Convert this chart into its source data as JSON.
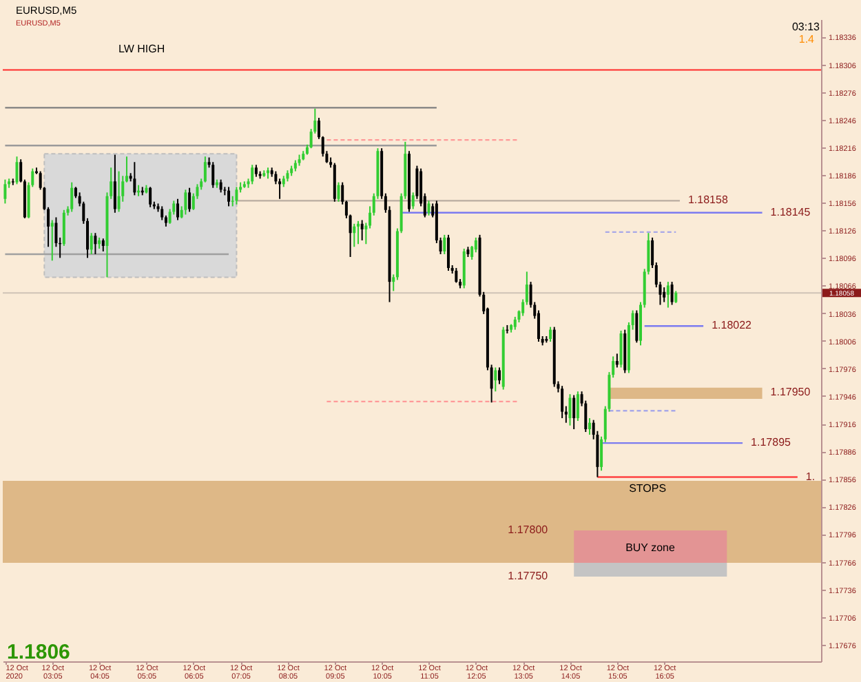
{
  "chart_data": {
    "type": "candlestick",
    "title": "EURUSD,M5",
    "subtitle": "EURUSD,M5",
    "x": [
      "2020-10-12T02:05",
      "2020-10-12T02:10",
      "2020-10-12T02:15",
      "2020-10-12T02:20",
      "2020-10-12T02:25",
      "2020-10-12T02:30",
      "2020-10-12T02:35",
      "2020-10-12T02:40",
      "2020-10-12T02:45",
      "2020-10-12T02:50",
      "2020-10-12T02:55",
      "2020-10-12T03:00",
      "2020-10-12T03:05",
      "2020-10-12T03:10",
      "2020-10-12T03:15",
      "2020-10-12T03:20",
      "2020-10-12T03:25",
      "2020-10-12T03:30",
      "2020-10-12T03:35",
      "2020-10-12T03:40",
      "2020-10-12T03:45",
      "2020-10-12T03:50",
      "2020-10-12T03:55",
      "2020-10-12T04:00",
      "2020-10-12T04:05",
      "2020-10-12T04:10",
      "2020-10-12T04:15",
      "2020-10-12T04:20",
      "2020-10-12T04:25",
      "2020-10-12T04:30",
      "2020-10-12T04:35",
      "2020-10-12T04:40",
      "2020-10-12T04:45",
      "2020-10-12T04:50",
      "2020-10-12T04:55",
      "2020-10-12T05:00",
      "2020-10-12T05:05",
      "2020-10-12T05:10",
      "2020-10-12T05:15",
      "2020-10-12T05:20",
      "2020-10-12T05:25",
      "2020-10-12T05:30",
      "2020-10-12T05:35",
      "2020-10-12T05:40",
      "2020-10-12T05:45",
      "2020-10-12T05:50",
      "2020-10-12T05:55",
      "2020-10-12T06:00",
      "2020-10-12T06:05",
      "2020-10-12T06:10",
      "2020-10-12T06:15",
      "2020-10-12T06:20",
      "2020-10-12T06:25",
      "2020-10-12T06:30",
      "2020-10-12T06:35",
      "2020-10-12T06:40",
      "2020-10-12T06:45",
      "2020-10-12T06:50",
      "2020-10-12T06:55",
      "2020-10-12T07:00",
      "2020-10-12T07:05",
      "2020-10-12T07:10",
      "2020-10-12T07:15",
      "2020-10-12T07:20",
      "2020-10-12T07:25",
      "2020-10-12T07:30",
      "2020-10-12T07:35",
      "2020-10-12T07:40",
      "2020-10-12T07:45",
      "2020-10-12T07:50",
      "2020-10-12T07:55",
      "2020-10-12T08:00",
      "2020-10-12T08:05",
      "2020-10-12T08:10",
      "2020-10-12T08:15",
      "2020-10-12T08:20",
      "2020-10-12T08:25",
      "2020-10-12T08:30",
      "2020-10-12T08:35",
      "2020-10-12T08:40",
      "2020-10-12T08:45",
      "2020-10-12T08:50",
      "2020-10-12T08:55",
      "2020-10-12T09:00",
      "2020-10-12T09:05",
      "2020-10-12T09:10",
      "2020-10-12T09:15",
      "2020-10-12T09:20",
      "2020-10-12T09:25",
      "2020-10-12T09:30",
      "2020-10-12T09:35",
      "2020-10-12T09:40",
      "2020-10-12T09:45",
      "2020-10-12T09:50",
      "2020-10-12T09:55",
      "2020-10-12T10:00",
      "2020-10-12T10:05",
      "2020-10-12T10:10",
      "2020-10-12T10:15",
      "2020-10-12T10:20",
      "2020-10-12T10:25",
      "2020-10-12T10:30",
      "2020-10-12T10:35",
      "2020-10-12T10:40",
      "2020-10-12T10:45",
      "2020-10-12T10:50",
      "2020-10-12T10:55",
      "2020-10-12T11:00",
      "2020-10-12T11:05",
      "2020-10-12T11:10",
      "2020-10-12T11:15",
      "2020-10-12T11:20",
      "2020-10-12T11:25",
      "2020-10-12T11:30",
      "2020-10-12T11:35",
      "2020-10-12T11:40",
      "2020-10-12T11:45",
      "2020-10-12T11:50",
      "2020-10-12T11:55",
      "2020-10-12T12:00",
      "2020-10-12T12:05",
      "2020-10-12T12:10",
      "2020-10-12T12:15",
      "2020-10-12T12:20",
      "2020-10-12T12:25",
      "2020-10-12T12:30",
      "2020-10-12T12:35",
      "2020-10-12T12:40",
      "2020-10-12T12:45",
      "2020-10-12T12:50",
      "2020-10-12T12:55",
      "2020-10-12T13:00",
      "2020-10-12T13:05",
      "2020-10-12T13:10",
      "2020-10-12T13:15",
      "2020-10-12T13:20",
      "2020-10-12T13:25",
      "2020-10-12T13:30",
      "2020-10-12T13:35",
      "2020-10-12T13:40",
      "2020-10-12T13:45",
      "2020-10-12T13:50",
      "2020-10-12T13:55",
      "2020-10-12T14:00",
      "2020-10-12T14:05",
      "2020-10-12T14:10",
      "2020-10-12T14:15",
      "2020-10-12T14:20",
      "2020-10-12T14:25",
      "2020-10-12T14:30",
      "2020-10-12T14:35",
      "2020-10-12T14:40",
      "2020-10-12T14:45",
      "2020-10-12T14:50",
      "2020-10-12T14:55",
      "2020-10-12T15:00",
      "2020-10-12T15:05",
      "2020-10-12T15:10",
      "2020-10-12T15:15",
      "2020-10-12T15:20",
      "2020-10-12T15:25",
      "2020-10-12T15:30",
      "2020-10-12T15:35",
      "2020-10-12T15:40",
      "2020-10-12T15:45",
      "2020-10-12T15:50",
      "2020-10-12T15:55",
      "2020-10-12T16:00",
      "2020-10-12T16:05",
      "2020-10-12T16:10",
      "2020-10-12T16:15",
      "2020-10-12T16:20"
    ],
    "ohlc": [
      [
        1.1816,
        1.18181,
        1.18155,
        1.18176
      ],
      [
        1.18176,
        1.18182,
        1.18172,
        1.18179
      ],
      [
        1.18179,
        1.18182,
        1.18175,
        1.18178
      ],
      [
        1.18178,
        1.18206,
        1.18176,
        1.182
      ],
      [
        1.182,
        1.18203,
        1.18178,
        1.18179
      ],
      [
        1.18179,
        1.18181,
        1.18139,
        1.1814
      ],
      [
        1.1814,
        1.18178,
        1.18139,
        1.18175
      ],
      [
        1.18175,
        1.18193,
        1.18173,
        1.1819
      ],
      [
        1.1819,
        1.18194,
        1.18187,
        1.18188
      ],
      [
        1.18188,
        1.1819,
        1.1817,
        1.18172
      ],
      [
        1.18172,
        1.18173,
        1.18148,
        1.18149
      ],
      [
        1.18149,
        1.18151,
        1.18108,
        1.1813
      ],
      [
        1.1813,
        1.18137,
        1.18093,
        1.18134
      ],
      [
        1.18134,
        1.1814,
        1.18108,
        1.18112
      ],
      [
        1.18112,
        1.18118,
        1.18096,
        1.18111
      ],
      [
        1.18111,
        1.18148,
        1.18109,
        1.18145
      ],
      [
        1.18145,
        1.18152,
        1.18142,
        1.18149
      ],
      [
        1.18149,
        1.18178,
        1.18146,
        1.18172
      ],
      [
        1.18172,
        1.18173,
        1.18161,
        1.18163
      ],
      [
        1.18163,
        1.18167,
        1.18152,
        1.18155
      ],
      [
        1.18155,
        1.18157,
        1.18133,
        1.18136
      ],
      [
        1.18136,
        1.18139,
        1.18096,
        1.18105
      ],
      [
        1.18105,
        1.18123,
        1.181,
        1.1812
      ],
      [
        1.1812,
        1.18123,
        1.181,
        1.18111
      ],
      [
        1.18111,
        1.18118,
        1.18106,
        1.18115
      ],
      [
        1.18115,
        1.18117,
        1.18103,
        1.18109
      ],
      [
        1.18109,
        1.18167,
        1.18075,
        1.18163
      ],
      [
        1.18163,
        1.18194,
        1.1816,
        1.18179
      ],
      [
        1.18179,
        1.18208,
        1.18145,
        1.18149
      ],
      [
        1.18149,
        1.1819,
        1.18146,
        1.18163
      ],
      [
        1.18163,
        1.18185,
        1.18157,
        1.18179
      ],
      [
        1.18179,
        1.18206,
        1.18178,
        1.18185
      ],
      [
        1.18185,
        1.18188,
        1.18179,
        1.18182
      ],
      [
        1.18182,
        1.182,
        1.18164,
        1.18167
      ],
      [
        1.18167,
        1.18175,
        1.18163,
        1.18169
      ],
      [
        1.18169,
        1.18173,
        1.18164,
        1.18167
      ],
      [
        1.18167,
        1.18175,
        1.18166,
        1.18172
      ],
      [
        1.18172,
        1.18173,
        1.18151,
        1.18154
      ],
      [
        1.18154,
        1.18157,
        1.18149,
        1.18152
      ],
      [
        1.18152,
        1.18155,
        1.18146,
        1.18149
      ],
      [
        1.18149,
        1.18152,
        1.18137,
        1.1814
      ],
      [
        1.1814,
        1.18142,
        1.1813,
        1.18134
      ],
      [
        1.18134,
        1.18149,
        1.18133,
        1.18146
      ],
      [
        1.18146,
        1.18158,
        1.18143,
        1.18155
      ],
      [
        1.18155,
        1.1816,
        1.18137,
        1.1814
      ],
      [
        1.1814,
        1.18152,
        1.18139,
        1.18148
      ],
      [
        1.18148,
        1.1817,
        1.18143,
        1.18167
      ],
      [
        1.18167,
        1.18172,
        1.18146,
        1.18149
      ],
      [
        1.18149,
        1.18166,
        1.18148,
        1.18163
      ],
      [
        1.18163,
        1.18176,
        1.1816,
        1.18173
      ],
      [
        1.18173,
        1.18182,
        1.1817,
        1.18179
      ],
      [
        1.18179,
        1.18206,
        1.18178,
        1.182
      ],
      [
        1.182,
        1.18205,
        1.18194,
        1.18197
      ],
      [
        1.18197,
        1.182,
        1.18172,
        1.18175
      ],
      [
        1.18175,
        1.18181,
        1.18172,
        1.18178
      ],
      [
        1.18178,
        1.18181,
        1.18167,
        1.1817
      ],
      [
        1.1817,
        1.18173,
        1.18164,
        1.18169
      ],
      [
        1.18169,
        1.18173,
        1.18152,
        1.18157
      ],
      [
        1.18157,
        1.18163,
        1.18152,
        1.18158
      ],
      [
        1.18158,
        1.18173,
        1.18154,
        1.1817
      ],
      [
        1.1817,
        1.18178,
        1.18167,
        1.18173
      ],
      [
        1.18173,
        1.18179,
        1.18172,
        1.18176
      ],
      [
        1.18176,
        1.18182,
        1.18172,
        1.18179
      ],
      [
        1.18179,
        1.18197,
        1.18176,
        1.18194
      ],
      [
        1.18194,
        1.18197,
        1.18184,
        1.18187
      ],
      [
        1.18187,
        1.1819,
        1.18182,
        1.18185
      ],
      [
        1.18185,
        1.18191,
        1.18184,
        1.18188
      ],
      [
        1.18188,
        1.18194,
        1.18182,
        1.18191
      ],
      [
        1.18191,
        1.18194,
        1.18184,
        1.18187
      ],
      [
        1.18187,
        1.1819,
        1.18176,
        1.18179
      ],
      [
        1.18179,
        1.18182,
        1.1816,
        1.18176
      ],
      [
        1.18176,
        1.18185,
        1.18173,
        1.18182
      ],
      [
        1.18182,
        1.18191,
        1.18179,
        1.18188
      ],
      [
        1.18188,
        1.18196,
        1.18185,
        1.18193
      ],
      [
        1.18193,
        1.18202,
        1.1819,
        1.18199
      ],
      [
        1.18199,
        1.18208,
        1.18196,
        1.18203
      ],
      [
        1.18203,
        1.18212,
        1.18202,
        1.18209
      ],
      [
        1.18209,
        1.18219,
        1.18208,
        1.18216
      ],
      [
        1.18216,
        1.18236,
        1.18215,
        1.18233
      ],
      [
        1.18233,
        1.18258,
        1.18231,
        1.18245
      ],
      [
        1.18245,
        1.18248,
        1.18225,
        1.18227
      ],
      [
        1.18227,
        1.18228,
        1.18206,
        1.18209
      ],
      [
        1.18209,
        1.18212,
        1.18199,
        1.182
      ],
      [
        1.182,
        1.18205,
        1.18194,
        1.18197
      ],
      [
        1.18197,
        1.18199,
        1.18157,
        1.1816
      ],
      [
        1.1816,
        1.18178,
        1.18157,
        1.18175
      ],
      [
        1.18175,
        1.18178,
        1.18154,
        1.18157
      ],
      [
        1.18157,
        1.18158,
        1.18139,
        1.18142
      ],
      [
        1.18142,
        1.18143,
        1.18097,
        1.18123
      ],
      [
        1.18123,
        1.18133,
        1.18108,
        1.1813
      ],
      [
        1.1813,
        1.18136,
        1.18111,
        1.18133
      ],
      [
        1.18133,
        1.18137,
        1.18115,
        1.18127
      ],
      [
        1.18127,
        1.18134,
        1.18111,
        1.18131
      ],
      [
        1.18131,
        1.18152,
        1.18128,
        1.18145
      ],
      [
        1.18145,
        1.18166,
        1.18142,
        1.18163
      ],
      [
        1.18163,
        1.18215,
        1.1816,
        1.18212
      ],
      [
        1.18212,
        1.18215,
        1.1816,
        1.18163
      ],
      [
        1.18163,
        1.18166,
        1.18145,
        1.18148
      ],
      [
        1.18148,
        1.18152,
        1.18048,
        1.1807
      ],
      [
        1.1807,
        1.18078,
        1.1806,
        1.18075
      ],
      [
        1.18075,
        1.18128,
        1.18072,
        1.18125
      ],
      [
        1.18125,
        1.18166,
        1.18123,
        1.18163
      ],
      [
        1.18163,
        1.18222,
        1.1816,
        1.18209
      ],
      [
        1.18209,
        1.18212,
        1.18146,
        1.18149
      ],
      [
        1.18152,
        1.18167,
        1.18149,
        1.18164
      ],
      [
        1.18193,
        1.18196,
        1.1816,
        1.18163
      ],
      [
        1.1819,
        1.18193,
        1.18152,
        1.18155
      ],
      [
        1.18163,
        1.18166,
        1.1814,
        1.18142
      ],
      [
        1.18145,
        1.18158,
        1.18142,
        1.18155
      ],
      [
        1.18152,
        1.18155,
        1.1814,
        1.18142
      ],
      [
        1.18155,
        1.18158,
        1.18112,
        1.18115
      ],
      [
        1.18115,
        1.18118,
        1.181,
        1.18103
      ],
      [
        1.18103,
        1.18121,
        1.181,
        1.18118
      ],
      [
        1.18118,
        1.18121,
        1.18082,
        1.18085
      ],
      [
        1.18085,
        1.18088,
        1.18079,
        1.18082
      ],
      [
        1.18082,
        1.18085,
        1.18069,
        1.1807
      ],
      [
        1.1807,
        1.18073,
        1.18063,
        1.18066
      ],
      [
        1.18066,
        1.18106,
        1.18063,
        1.18103
      ],
      [
        1.18105,
        1.18108,
        1.18097,
        1.181
      ],
      [
        1.18097,
        1.18109,
        1.18094,
        1.18108
      ],
      [
        1.18105,
        1.18118,
        1.18102,
        1.18115
      ],
      [
        1.18118,
        1.18121,
        1.18054,
        1.18056
      ],
      [
        1.18056,
        1.18059,
        1.18035,
        1.18038
      ],
      [
        1.18041,
        1.18042,
        1.17974,
        1.17977
      ],
      [
        1.17977,
        1.1798,
        1.17939,
        1.17954
      ],
      [
        1.17963,
        1.17977,
        1.17951,
        1.17974
      ],
      [
        1.17974,
        1.17977,
        1.17959,
        1.17963
      ],
      [
        1.17956,
        1.18021,
        1.17953,
        1.18018
      ],
      [
        1.18018,
        1.18023,
        1.18014,
        1.18017
      ],
      [
        1.18018,
        1.18024,
        1.18015,
        1.18023
      ],
      [
        1.18021,
        1.18032,
        1.18018,
        1.18029
      ],
      [
        1.18029,
        1.18039,
        1.18026,
        1.18038
      ],
      [
        1.18036,
        1.18051,
        1.18033,
        1.18048
      ],
      [
        1.18048,
        1.18081,
        1.18045,
        1.18067
      ],
      [
        1.18067,
        1.1807,
        1.18042,
        1.18045
      ],
      [
        1.18045,
        1.18048,
        1.1803,
        1.18033
      ],
      [
        1.18036,
        1.18039,
        1.18005,
        1.18008
      ],
      [
        1.18008,
        1.18011,
        1.18001,
        1.18004
      ],
      [
        1.18008,
        1.18011,
        1.18004,
        1.18006
      ],
      [
        1.18008,
        1.18021,
        1.18005,
        1.18018
      ],
      [
        1.18018,
        1.18021,
        1.17956,
        1.17959
      ],
      [
        1.17959,
        1.17962,
        1.1795,
        1.17954
      ],
      [
        1.17954,
        1.17957,
        1.17922,
        1.17929
      ],
      [
        1.17929,
        1.17935,
        1.17917,
        1.17926
      ],
      [
        1.17922,
        1.17948,
        1.17914,
        1.17944
      ],
      [
        1.17944,
        1.17947,
        1.1791,
        1.17922
      ],
      [
        1.17922,
        1.17951,
        1.17919,
        1.17948
      ],
      [
        1.17948,
        1.17951,
        1.17935,
        1.17938
      ],
      [
        1.17938,
        1.17941,
        1.17907,
        1.1791
      ],
      [
        1.1791,
        1.17922,
        1.17904,
        1.17917
      ],
      [
        1.17917,
        1.1792,
        1.17899,
        1.17904
      ],
      [
        1.17904,
        1.17908,
        1.17858,
        1.17869
      ],
      [
        1.17869,
        1.17902,
        1.17865,
        1.17899
      ],
      [
        1.17899,
        1.17935,
        1.17896,
        1.17932
      ],
      [
        1.17932,
        1.17972,
        1.17929,
        1.17969
      ],
      [
        1.17969,
        1.17989,
        1.17966,
        1.17984
      ],
      [
        1.17984,
        1.17992,
        1.17977,
        1.1798
      ],
      [
        1.1798,
        1.18017,
        1.17977,
        1.18014
      ],
      [
        1.18014,
        1.18018,
        1.17971,
        1.17974
      ],
      [
        1.17974,
        1.18026,
        1.17971,
        1.18023
      ],
      [
        1.18023,
        1.18039,
        1.18018,
        1.18036
      ],
      [
        1.18036,
        1.18039,
        1.18004,
        1.18006
      ],
      [
        1.18006,
        1.18048,
        1.18001,
        1.18045
      ],
      [
        1.18045,
        1.18084,
        1.18042,
        1.18081
      ],
      [
        1.18081,
        1.18123,
        1.18078,
        1.18115
      ],
      [
        1.18115,
        1.18118,
        1.18085,
        1.18088
      ],
      [
        1.18088,
        1.18091,
        1.18064,
        1.18067
      ],
      [
        1.18067,
        1.1807,
        1.18045,
        1.18056
      ],
      [
        1.18059,
        1.18064,
        1.18048,
        1.18053
      ],
      [
        1.18056,
        1.1807,
        1.18042,
        1.18066
      ],
      [
        1.18067,
        1.1807,
        1.18045,
        1.18048
      ],
      [
        1.18048,
        1.1806,
        1.18047,
        1.18058
      ]
    ],
    "colors": [
      "#32cd32",
      "#32cd32",
      "#000000",
      "#32cd32",
      "#000000",
      "#000000",
      "#32cd32",
      "#32cd32",
      "#000000",
      "#000000",
      "#000000",
      "#000000",
      "#32cd32",
      "#000000",
      "#000000",
      "#32cd32",
      "#32cd32",
      "#32cd32",
      "#000000",
      "#000000",
      "#000000",
      "#000000",
      "#32cd32",
      "#000000",
      "#32cd32",
      "#000000",
      "#32cd32",
      "#32cd32",
      "#000000",
      "#32cd32",
      "#32cd32",
      "#32cd32",
      "#000000",
      "#000000",
      "#32cd32",
      "#000000",
      "#32cd32",
      "#000000",
      "#000000",
      "#000000",
      "#000000",
      "#000000",
      "#32cd32",
      "#32cd32",
      "#000000",
      "#32cd32",
      "#32cd32",
      "#000000",
      "#32cd32",
      "#32cd32",
      "#32cd32",
      "#32cd32",
      "#000000",
      "#000000",
      "#32cd32",
      "#000000",
      "#000000",
      "#000000",
      "#32cd32",
      "#32cd32",
      "#32cd32",
      "#32cd32",
      "#32cd32",
      "#32cd32",
      "#000000",
      "#000000",
      "#32cd32",
      "#32cd32",
      "#000000",
      "#000000",
      "#000000",
      "#32cd32",
      "#32cd32",
      "#32cd32",
      "#32cd32",
      "#32cd32",
      "#32cd32",
      "#32cd32",
      "#32cd32",
      "#32cd32",
      "#000000",
      "#000000",
      "#000000",
      "#000000",
      "#000000",
      "#32cd32",
      "#000000",
      "#000000",
      "#000000",
      "#32cd32",
      "#32cd32",
      "#000000",
      "#32cd32",
      "#32cd32",
      "#32cd32",
      "#32cd32",
      "#000000",
      "#000000",
      "#000000",
      "#32cd32",
      "#32cd32",
      "#32cd32",
      "#32cd32",
      "#000000",
      "#32cd32",
      "#000000",
      "#000000",
      "#000000",
      "#32cd32",
      "#000000",
      "#000000",
      "#000000",
      "#32cd32",
      "#000000",
      "#000000",
      "#000000",
      "#000000",
      "#32cd32",
      "#000000",
      "#32cd32",
      "#32cd32",
      "#000000",
      "#000000",
      "#000000",
      "#000000",
      "#32cd32",
      "#000000",
      "#32cd32",
      "#000000",
      "#32cd32",
      "#32cd32",
      "#32cd32",
      "#32cd32",
      "#32cd32",
      "#000000",
      "#000000",
      "#000000",
      "#000000",
      "#000000",
      "#32cd32",
      "#000000",
      "#000000",
      "#000000",
      "#000000",
      "#32cd32",
      "#000000",
      "#32cd32",
      "#000000",
      "#000000",
      "#32cd32",
      "#000000",
      "#000000",
      "#32cd32",
      "#32cd32",
      "#32cd32",
      "#32cd32",
      "#000000",
      "#32cd32",
      "#000000",
      "#32cd32",
      "#32cd32",
      "#000000",
      "#32cd32",
      "#32cd32",
      "#32cd32",
      "#000000",
      "#000000",
      "#000000",
      "#000000",
      "#32cd32",
      "#000000",
      "#32cd32"
    ],
    "xlim": [
      "2020-10-12T02:02",
      "2020-10-12T19:25"
    ],
    "xticks": [
      {
        "value": "2020-10-12T02:05",
        "label": "12 Oct 2020"
      },
      {
        "value": "2020-10-12T03:05",
        "label": "12 Oct 03:05"
      },
      {
        "value": "2020-10-12T04:05",
        "label": "12 Oct 04:05"
      },
      {
        "value": "2020-10-12T05:05",
        "label": "12 Oct 05:05"
      },
      {
        "value": "2020-10-12T06:05",
        "label": "12 Oct 06:05"
      },
      {
        "value": "2020-10-12T07:05",
        "label": "12 Oct 07:05"
      },
      {
        "value": "2020-10-12T08:05",
        "label": "12 Oct 08:05"
      },
      {
        "value": "2020-10-12T09:05",
        "label": "12 Oct 09:05"
      },
      {
        "value": "2020-10-12T10:05",
        "label": "12 Oct 10:05"
      },
      {
        "value": "2020-10-12T11:05",
        "label": "12 Oct 11:05"
      },
      {
        "value": "2020-10-12T12:05",
        "label": "12 Oct 12:05"
      },
      {
        "value": "2020-10-12T13:05",
        "label": "12 Oct 13:05"
      },
      {
        "value": "2020-10-12T14:05",
        "label": "12 Oct 14:05"
      },
      {
        "value": "2020-10-12T15:05",
        "label": "12 Oct 15:05"
      },
      {
        "value": "2020-10-12T16:05",
        "label": "12 Oct 16:05"
      }
    ],
    "ylim": [
      1.17658,
      1.18355
    ],
    "yticks": [
      1.17676,
      1.17706,
      1.17736,
      1.17766,
      1.17796,
      1.17826,
      1.17856,
      1.17886,
      1.17916,
      1.17946,
      1.17976,
      1.18006,
      1.18036,
      1.18066,
      1.18096,
      1.18126,
      1.18156,
      1.18186,
      1.18216,
      1.18246,
      1.18276,
      1.18306,
      1.18336
    ],
    "bands": [
      {
        "axis": "y",
        "from": 1.17765,
        "to": 1.17854,
        "label": "STOPS",
        "color": "#deb887"
      }
    ],
    "ref_lines": [
      {
        "axis": "y",
        "value": 1.183,
        "label": "LW HIGH",
        "color": "#ff2a2a"
      },
      {
        "axis": "y",
        "value": 1.18058,
        "label": "1.18058",
        "color": "#cfc3b6"
      }
    ],
    "series": [
      {
        "type": "line",
        "color": "#d9d9d9",
        "line_style": "dashed",
        "x": [
          "2020-10-12T02:55",
          "2020-10-12T07:00"
        ],
        "values": [
          null,
          null
        ],
        "lower": [
          1.18075,
          1.18075
        ],
        "upper": [
          1.18209,
          1.18209
        ]
      },
      {
        "type": "line",
        "color": "#deb887",
        "x": [
          "2020-10-12T14:55",
          "2020-10-12T18:10"
        ],
        "values": [
          null,
          null
        ],
        "lower": [
          1.17943,
          1.17943
        ],
        "upper": [
          1.17955,
          1.17955
        ]
      },
      {
        "type": "line",
        "color": "#e39494",
        "x": [
          "2020-10-12T14:10",
          "2020-10-12T17:25"
        ],
        "values": [
          null,
          null
        ],
        "lower": [
          1.17765,
          1.17765
        ],
        "upper": [
          1.178,
          1.178
        ]
      },
      {
        "type": "line",
        "color": "#c4c4c4",
        "x": [
          "2020-10-12T14:10",
          "2020-10-12T17:25"
        ],
        "values": [
          null,
          null
        ],
        "lower": [
          1.1775,
          1.1775
        ],
        "upper": [
          1.17765,
          1.17765
        ]
      },
      {
        "type": "line",
        "color": "#7f7f7f",
        "x": [
          "2020-10-12T02:05",
          "2020-10-12T11:15"
        ],
        "values": [
          1.18259,
          1.18259
        ]
      },
      {
        "type": "line",
        "color": "#9a9a9a",
        "x": [
          "2020-10-12T02:05",
          "2020-10-12T11:15"
        ],
        "values": [
          1.18218,
          1.18218
        ]
      },
      {
        "type": "line",
        "color": "#ff9999",
        "line_style": "dashed",
        "x": [
          "2020-10-12T08:55",
          "2020-10-12T13:00"
        ],
        "values": [
          1.18224,
          1.18224
        ]
      },
      {
        "type": "line",
        "color": "#b8aca0",
        "x": [
          "2020-10-12T07:00",
          "2020-10-12T16:25"
        ],
        "values": [
          1.18158,
          1.18158
        ]
      },
      {
        "type": "line",
        "color": "#7b7bf0",
        "x": [
          "2020-10-12T10:30",
          "2020-10-12T18:10"
        ],
        "values": [
          1.18145,
          1.18145
        ]
      },
      {
        "type": "line",
        "color": "#a0a0a0",
        "x": [
          "2020-10-12T02:05",
          "2020-10-12T06:50"
        ],
        "values": [
          1.181,
          1.181
        ]
      },
      {
        "type": "line",
        "color": "#ff9999",
        "line_style": "dashed",
        "x": [
          "2020-10-12T08:55",
          "2020-10-12T13:00"
        ],
        "values": [
          1.1794,
          1.1794
        ]
      },
      {
        "type": "line",
        "color": "#a8a8e8",
        "line_style": "dashed",
        "x": [
          "2020-10-12T14:50",
          "2020-10-12T16:20"
        ],
        "values": [
          1.18124,
          1.18124
        ]
      },
      {
        "type": "line",
        "color": "#a8a8e8",
        "line_style": "dashed",
        "x": [
          "2020-10-12T14:55",
          "2020-10-12T16:20"
        ],
        "values": [
          1.1793,
          1.1793
        ]
      },
      {
        "type": "line",
        "color": "#7b7bf0",
        "x": [
          "2020-10-12T15:40",
          "2020-10-12T16:55"
        ],
        "values": [
          1.18022,
          1.18022
        ]
      },
      {
        "type": "line",
        "color": "#7b7bf0",
        "x": [
          "2020-10-12T14:45",
          "2020-10-12T17:45"
        ],
        "values": [
          1.17895,
          1.17895
        ]
      },
      {
        "type": "line",
        "color": "#ff4040",
        "x": [
          "2020-10-12T14:40",
          "2020-10-12T18:55"
        ],
        "values": [
          1.17858,
          1.17858
        ]
      }
    ],
    "annotations": [
      "03:13",
      "1.4",
      "1.1806",
      "BUY zone",
      {
        "text": "1.18158",
        "x": "2020-10-12T16:25",
        "y": 1.18158
      },
      {
        "text": "1.18145",
        "x": "2020-10-12T18:10",
        "y": 1.18145
      },
      {
        "text": "1.18022",
        "x": "2020-10-12T16:55",
        "y": 1.18022
      },
      {
        "text": "1.17950",
        "x": "2020-10-12T18:10",
        "y": 1.1795
      },
      {
        "text": "1.17895",
        "x": "2020-10-12T17:45",
        "y": 1.17895
      },
      {
        "text": "1.",
        "x": "2020-10-12T18:55",
        "y": 1.17858
      },
      {
        "text": "1.17800",
        "x": "2020-10-12T14:10",
        "y": 1.178
      },
      {
        "text": "1.17750",
        "x": "2020-10-12T14:10",
        "y": 1.1775
      }
    ]
  }
}
